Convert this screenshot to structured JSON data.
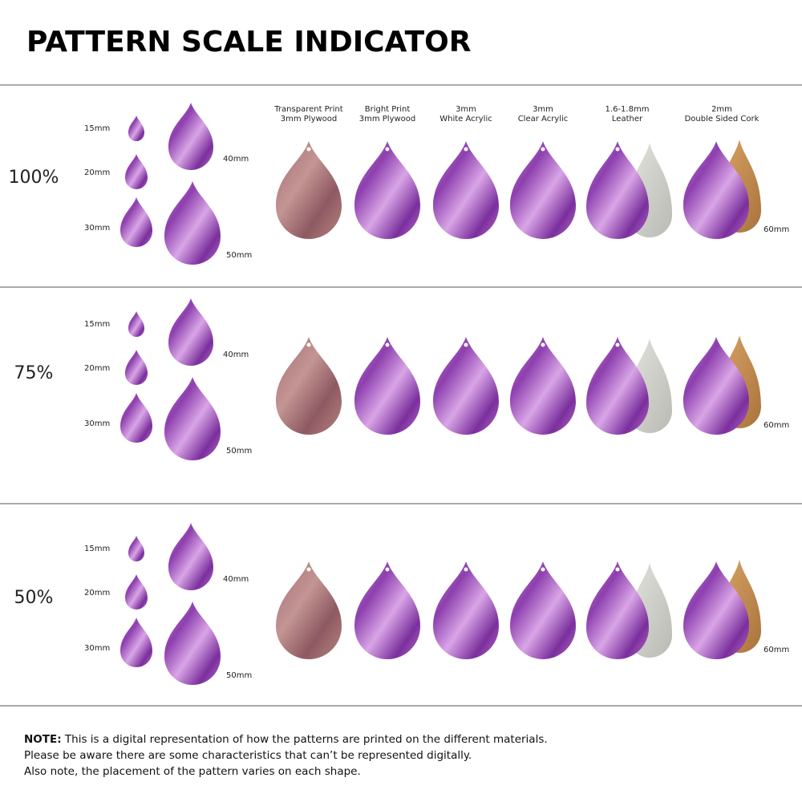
{
  "title": "PATTERN SCALE INDICATOR",
  "materials": [
    [
      "Transparent Print",
      "3mm Plywood"
    ],
    [
      "Bright Print",
      "3mm Plywood"
    ],
    [
      "3mm",
      "White Acrylic"
    ],
    [
      "3mm",
      "Clear Acrylic"
    ],
    [
      "1.6-1.8mm",
      "Leather"
    ],
    [
      "2mm",
      "Double Sided Cork"
    ]
  ],
  "rows": [
    {
      "scale": "100%",
      "sizes": [
        "15mm",
        "20mm",
        "30mm",
        "40mm",
        "50mm"
      ],
      "width": "60mm"
    },
    {
      "scale": "75%",
      "sizes": [
        "15mm",
        "20mm",
        "30mm",
        "40mm",
        "50mm"
      ],
      "width": "60mm"
    },
    {
      "scale": "50%",
      "sizes": [
        "15mm",
        "20mm",
        "30mm",
        "40mm",
        "50mm"
      ],
      "width": "60mm"
    }
  ],
  "note": {
    "label": "NOTE:",
    "lines": [
      "This is a digital representation of how the patterns are printed on the different materials.",
      "Please be aware there are some characteristics that can’t be represented digitally.",
      "Also note, the placement of the pattern varies on each shape."
    ]
  }
}
